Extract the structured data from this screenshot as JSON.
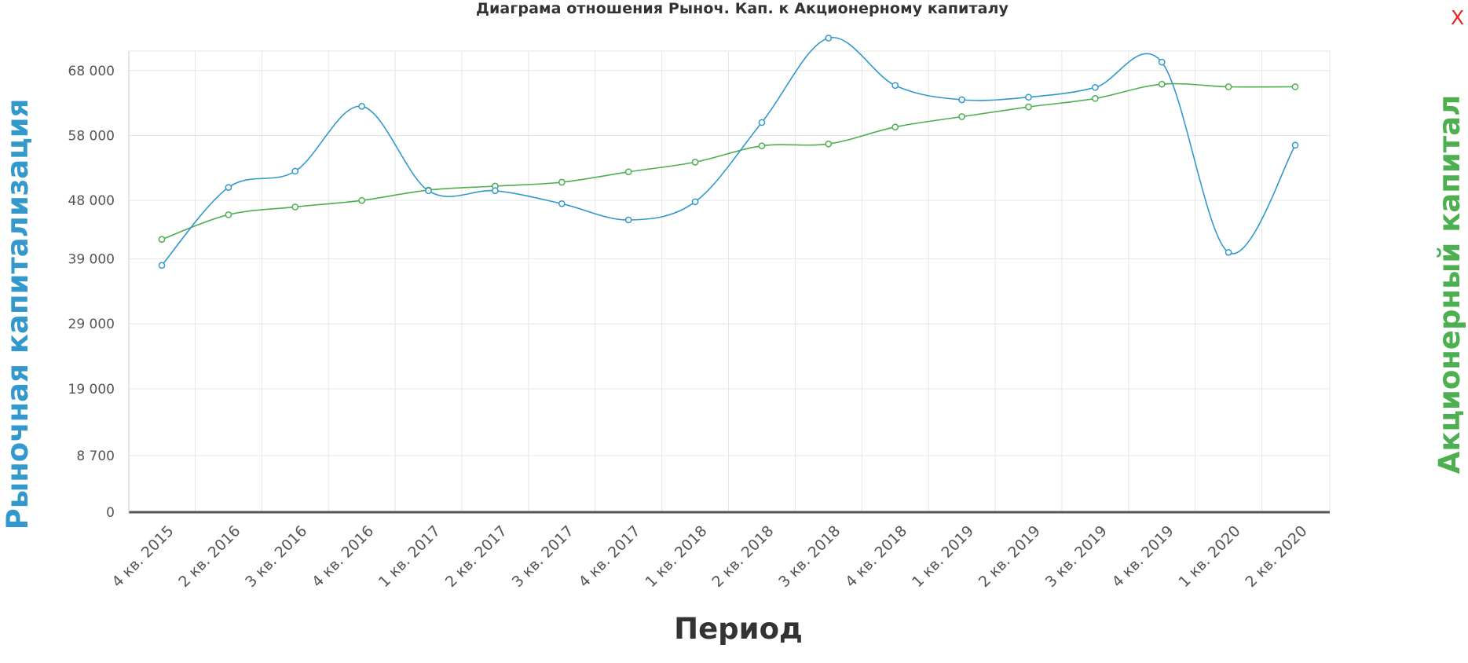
{
  "chart_data": {
    "type": "line",
    "title": "Диаграма отношения Рыноч. Кап. к Акционерному капиталу",
    "xlabel": "Период",
    "ylabel_left": "Рыночная капитализация",
    "ylabel_right": "Акционерный капитал",
    "categories": [
      "4 кв. 2015",
      "2 кв. 2016",
      "3 кв. 2016",
      "4 кв. 2016",
      "1 кв. 2017",
      "2 кв. 2017",
      "3 кв. 2017",
      "4 кв. 2017",
      "1 кв. 2018",
      "2 кв. 2018",
      "3 кв. 2018",
      "4 кв. 2018",
      "1 кв. 2019",
      "2 кв. 2019",
      "3 кв. 2019",
      "4 кв. 2019",
      "1 кв. 2020",
      "2 кв. 2020"
    ],
    "y_ticks": [
      0,
      8700,
      19000,
      29000,
      39000,
      48000,
      58000,
      68000
    ],
    "y_tick_labels": [
      "0",
      "8 700",
      "19 000",
      "29 000",
      "39 000",
      "48 000",
      "58 000",
      "68 000"
    ],
    "ylim": [
      0,
      71000
    ],
    "grid": true,
    "series": [
      {
        "axis": "left",
        "color": "#3399cc",
        "values": [
          38000,
          50000,
          52500,
          62500,
          49500,
          49500,
          47500,
          45000,
          47800,
          60000,
          73000,
          65700,
          63500,
          63900,
          65400,
          69300,
          40000,
          56500
        ]
      },
      {
        "axis": "right",
        "color": "#4caf50",
        "values": [
          42000,
          45800,
          47000,
          48000,
          49600,
          50200,
          50800,
          52400,
          53900,
          56400,
          56700,
          59300,
          60900,
          62400,
          63700,
          65900,
          65500,
          65500
        ]
      }
    ]
  },
  "close_label": "X"
}
